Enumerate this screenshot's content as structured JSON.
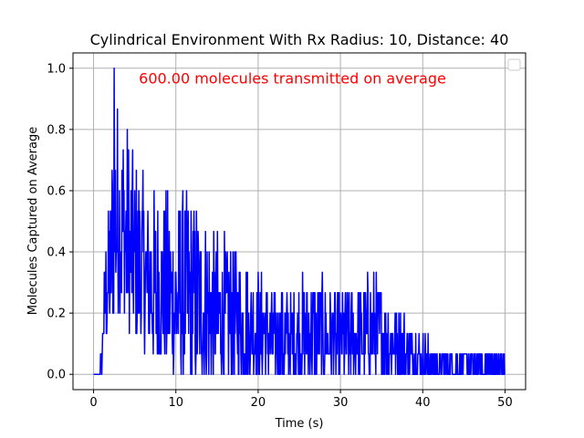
{
  "chart_data": {
    "type": "line",
    "title": "Cylindrical Environment With Rx Radius: 10, Distance: 40",
    "xlabel": "Time (s)",
    "ylabel": "Molecules Captured on Average",
    "xlim": [
      -2.5,
      52.5
    ],
    "ylim": [
      -0.05,
      1.05
    ],
    "x_ticks": [
      0,
      10,
      20,
      30,
      40,
      50
    ],
    "y_ticks": [
      0.0,
      0.2,
      0.4,
      0.6,
      0.8,
      1.0
    ],
    "x_tick_labels": [
      "0",
      "10",
      "20",
      "30",
      "40",
      "50"
    ],
    "y_tick_labels": [
      "0.0",
      "0.2",
      "0.4",
      "0.6",
      "0.8",
      "1.0"
    ],
    "grid": true,
    "legend": "top-right, empty",
    "annotation": {
      "text": "600.00 molecules transmitted on average",
      "x": 5.5,
      "y": 0.95,
      "color": "#ff0000"
    },
    "series": [
      {
        "color": "#0000ff",
        "peak": {
          "x": 2.5,
          "y": 1.0
        },
        "envelope": {
          "x": [
            0,
            0.5,
            0.9,
            1.2,
            1.6,
            2.0,
            2.5,
            3.5,
            5,
            7,
            10,
            12,
            15,
            18,
            20,
            23,
            26,
            30,
            34,
            38,
            40,
            42,
            45,
            48,
            50
          ],
          "max": [
            0,
            0,
            0.07,
            0.27,
            0.53,
            0.6,
            1.0,
            0.87,
            0.73,
            0.6,
            0.6,
            0.6,
            0.47,
            0.4,
            0.33,
            0.27,
            0.33,
            0.27,
            0.33,
            0.2,
            0.13,
            0.07,
            0.07,
            0.07,
            0.07
          ],
          "min": [
            0,
            0,
            0,
            0.07,
            0.13,
            0.13,
            0.2,
            0.2,
            0.13,
            0.07,
            0,
            0,
            0,
            0,
            0,
            0,
            0,
            0,
            0,
            0,
            0,
            0,
            0,
            0,
            0
          ]
        }
      }
    ]
  }
}
